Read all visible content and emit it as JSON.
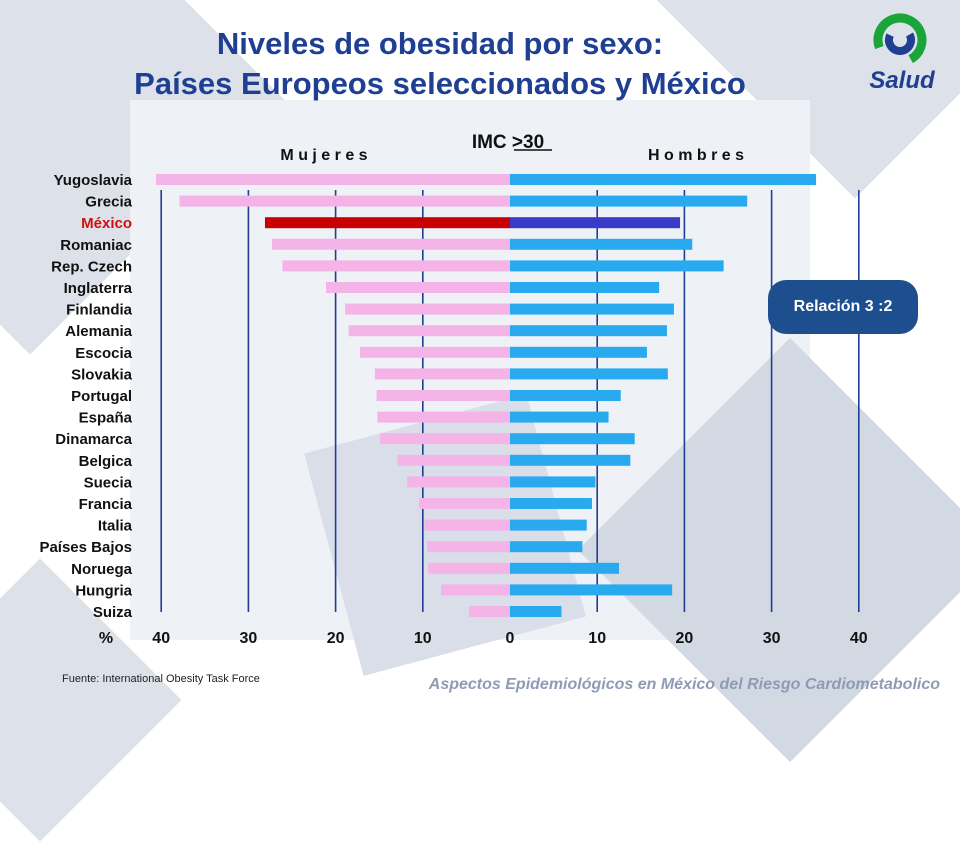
{
  "title": {
    "line1": "Niveles de obesidad por sexo:",
    "line2": "Países Europeos seleccionados y México"
  },
  "logo": {
    "text": "Salud",
    "icon": "salud-swirl-icon"
  },
  "badge": "Relación 3 :2",
  "source": "Fuente: International Obesity Task Force",
  "footer": "Aspectos Epidemiológicos en México del Riesgo Cardiometabolico",
  "colors": {
    "women": "#f4b4e8",
    "men": "#29aaef",
    "mexico_women": "#c80000",
    "mexico_men": "#3a3ac8",
    "mexico_label": "#d01010",
    "axis_line": "#1f3f92",
    "title": "#1f3f92"
  },
  "chart_data": {
    "type": "bar",
    "orientation": "horizontal-diverging",
    "title": "IMC >30",
    "left_label": "M u j e r e s",
    "right_label": "H o m b r e s",
    "unit_label": "%",
    "ticks": [
      "40",
      "30",
      "20",
      "10",
      "0",
      "10",
      "20",
      "30",
      "40"
    ],
    "xlim": [
      -40,
      40
    ],
    "grid": true,
    "highlight": "México",
    "categories": [
      "Yugoslavia",
      "Grecia",
      "México",
      "Romaniac",
      "Rep. Czech",
      "Inglaterra",
      "Finlandia",
      "Alemania",
      "Escocia",
      "Slovakia",
      "Portugal",
      "España",
      "Dinamarca",
      "Belgica",
      "Suecia",
      "Francia",
      "Italia",
      "Países Bajos",
      "Noruega",
      "Hungria",
      "Suiza"
    ],
    "series": [
      {
        "name": "M u j e r e s",
        "values": [
          40.6,
          37.9,
          28.1,
          27.3,
          26.1,
          21.1,
          18.9,
          18.5,
          17.2,
          15.5,
          15.3,
          15.2,
          14.9,
          12.9,
          11.8,
          10.4,
          9.8,
          9.5,
          9.4,
          7.9,
          4.7
        ]
      },
      {
        "name": "H o m b r e s",
        "values": [
          35.1,
          27.2,
          19.5,
          20.9,
          24.5,
          17.1,
          18.8,
          18.0,
          15.7,
          18.1,
          12.7,
          11.3,
          14.3,
          13.8,
          9.8,
          9.4,
          8.8,
          8.3,
          12.5,
          18.6,
          5.9
        ]
      }
    ]
  }
}
